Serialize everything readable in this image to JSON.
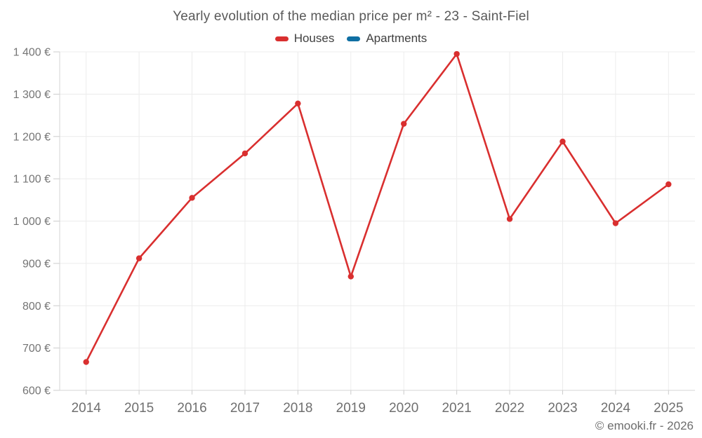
{
  "chart": {
    "title": "Yearly evolution of the median price per m² - 23 - Saint-Fiel",
    "copyright": "© emooki.fr - 2026"
  },
  "chart_data": {
    "type": "line",
    "title": "Yearly evolution of the median price per m² - 23 - Saint-Fiel",
    "categories": [
      "2014",
      "2015",
      "2016",
      "2017",
      "2018",
      "2019",
      "2020",
      "2021",
      "2022",
      "2023",
      "2024",
      "2025"
    ],
    "series": [
      {
        "name": "Houses",
        "color": "#d92f2f",
        "marker": "circle",
        "values": [
          667,
          912,
          1055,
          1160,
          1278,
          869,
          1230,
          1395,
          1005,
          1188,
          995,
          1087
        ]
      },
      {
        "name": "Apartments",
        "color": "#0f6fa3",
        "marker": "circle",
        "values": []
      }
    ],
    "xlabel": "",
    "ylabel": "",
    "y_unit": "€",
    "y_tick_format": "1 400 €",
    "ylim": [
      600,
      1400
    ],
    "ytick_step": 100,
    "grid": true,
    "legend_position": "top"
  },
  "colors": {
    "houses_red": "#d92f2f",
    "apartments_blue": "#0f6fa3",
    "grid": "#ececec",
    "axis": "#d4d4d4",
    "tick": "#cccccc",
    "y_label_text": "#757575",
    "x_label_text": "#6f6f6f",
    "title_text": "#595959",
    "legend_text": "#404040",
    "copyright_text": "#6d6d6d"
  }
}
